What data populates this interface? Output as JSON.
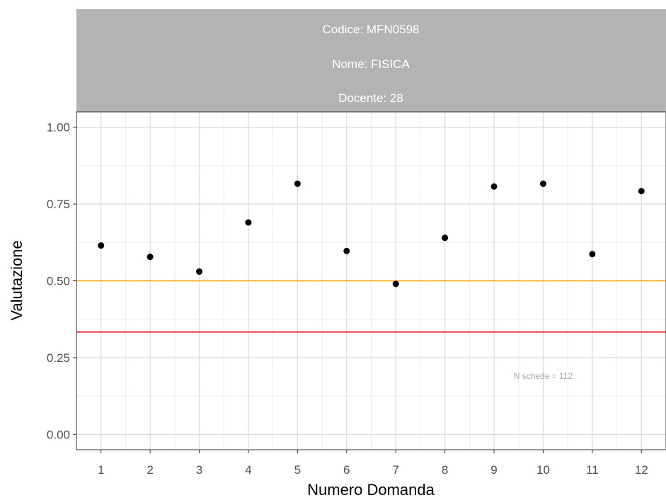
{
  "chart_data": {
    "type": "scatter",
    "facet_strip": {
      "lines": [
        "Codice: MFN0598",
        "Nome: FISICA",
        "Docente: 28"
      ],
      "background": "#b3b3b3",
      "text_color": "#ffffff"
    },
    "x": [
      1,
      2,
      3,
      4,
      5,
      6,
      7,
      8,
      9,
      10,
      11,
      12
    ],
    "values": [
      0.615,
      0.578,
      0.53,
      0.69,
      0.816,
      0.597,
      0.49,
      0.64,
      0.807,
      0.816,
      0.587,
      0.792
    ],
    "x_ticks": [
      "1",
      "2",
      "3",
      "4",
      "5",
      "6",
      "7",
      "8",
      "9",
      "10",
      "11",
      "12"
    ],
    "y_ticks": [
      "0.00",
      "0.25",
      "0.50",
      "0.75",
      "1.00"
    ],
    "xlim": [
      0.5,
      12.5
    ],
    "ylim": [
      -0.05,
      1.05
    ],
    "xlabel": "Numero Domanda",
    "ylabel": "Valutazione",
    "reference_lines": [
      {
        "y": 0.5,
        "color": "#ffa500"
      },
      {
        "y": 0.3333,
        "color": "#e8191c"
      }
    ],
    "annotation": {
      "text": "N schede =  112",
      "x": 10,
      "y": 0.19
    },
    "point_color": "#000000",
    "grid": true
  }
}
